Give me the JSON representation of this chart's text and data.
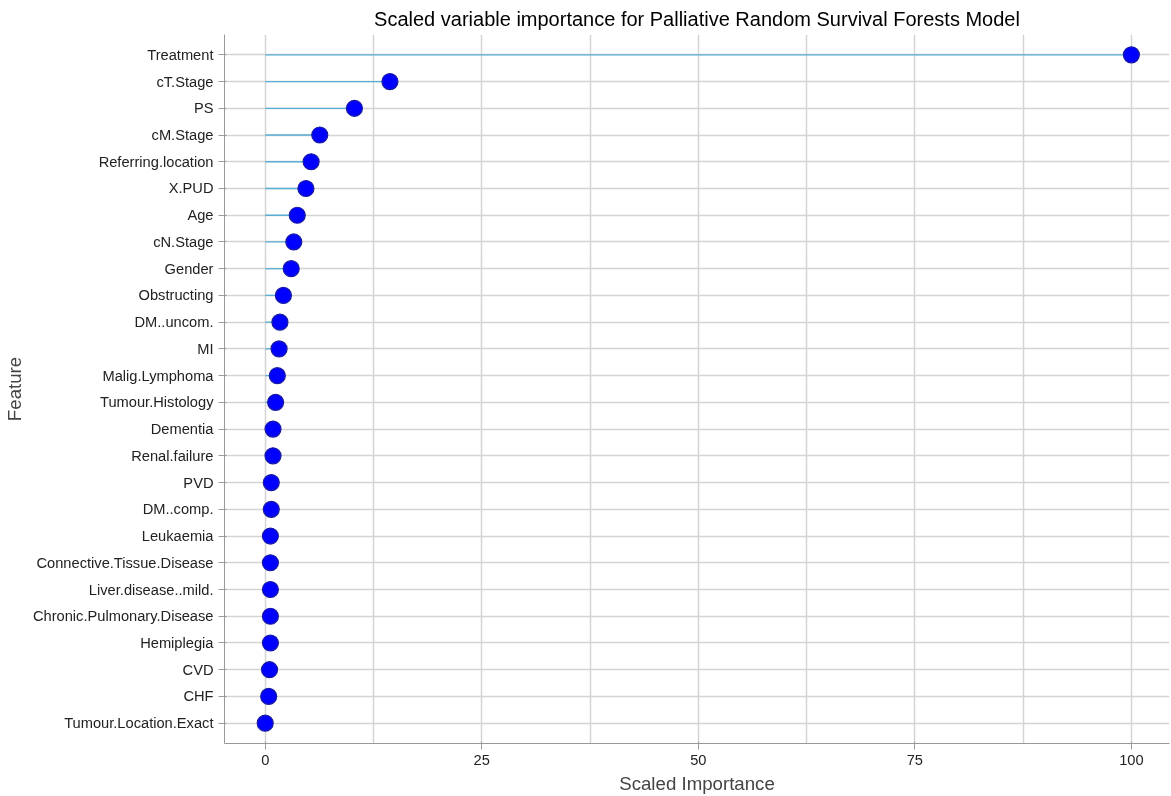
{
  "chart_data": {
    "type": "lollipop",
    "title": "Scaled variable importance for Palliative Random Survival Forests Model",
    "xlabel": "Scaled Importance",
    "ylabel": "Feature",
    "orientation": "horizontal",
    "categories": [
      "Treatment",
      "cT.Stage",
      "PS",
      "cM.Stage",
      "Referring.location",
      "X.PUD",
      "Age",
      "cN.Stage",
      "Gender",
      "Obstructing",
      "DM..uncom.",
      "MI",
      "Malig.Lymphoma",
      "Tumour.Histology",
      "Dementia",
      "Renal.failure",
      "PVD",
      "DM..comp.",
      "Leukaemia",
      "Connective.Tissue.Disease",
      "Liver.disease..mild.",
      "Chronic.Pulmonary.Disease",
      "Hemiplegia",
      "CVD",
      "CHF",
      "Tumour.Location.Exact"
    ],
    "values": [
      100,
      14.4,
      10.3,
      6.3,
      5.3,
      4.7,
      3.7,
      3.3,
      3.0,
      2.1,
      1.7,
      1.6,
      1.4,
      1.2,
      0.9,
      0.9,
      0.7,
      0.7,
      0.6,
      0.6,
      0.6,
      0.6,
      0.6,
      0.5,
      0.4,
      0
    ],
    "color": "#0000ff",
    "xlim": [
      -4.7,
      104.4
    ],
    "xticks": [
      0,
      25,
      50,
      75,
      100
    ],
    "grid": true,
    "marker": "circle"
  }
}
